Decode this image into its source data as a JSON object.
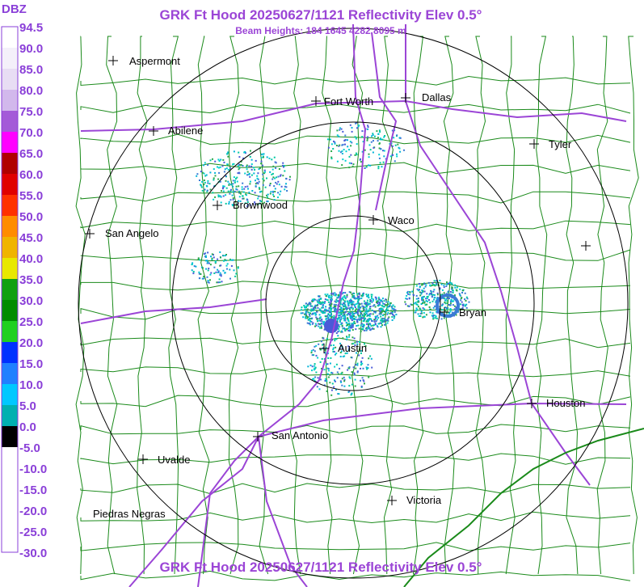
{
  "header": {
    "title": "GRK Ft Hood 20250627/1121 Reflectivity Elev 0.5°",
    "subtitle": "Beam Heights: 184 1645 4282 8095 m",
    "footer": "GRK Ft Hood 20250627/1121 Reflectivity Elev 0.5°"
  },
  "colorbar": {
    "unit": "DBZ",
    "labels": [
      "94.5",
      "90.0",
      "85.0",
      "80.0",
      "75.0",
      "70.0",
      "65.0",
      "60.0",
      "55.0",
      "50.0",
      "45.0",
      "40.0",
      "35.0",
      "30.0",
      "25.0",
      "20.0",
      "15.0",
      "10.0",
      "5.0",
      "0.0",
      "-5.0",
      "-10.0",
      "-15.0",
      "-20.0",
      "-25.0",
      "-30.0"
    ]
  },
  "cities": [
    "Aspermont",
    "Fort Worth",
    "Dallas",
    "Abilene",
    "Tyler",
    "Brownwood",
    "Waco",
    "San Angelo",
    "Bryan",
    "Austin",
    "Houston",
    "San Antonio",
    "Uvalde",
    "Victoria",
    "Piedras Negras"
  ]
}
